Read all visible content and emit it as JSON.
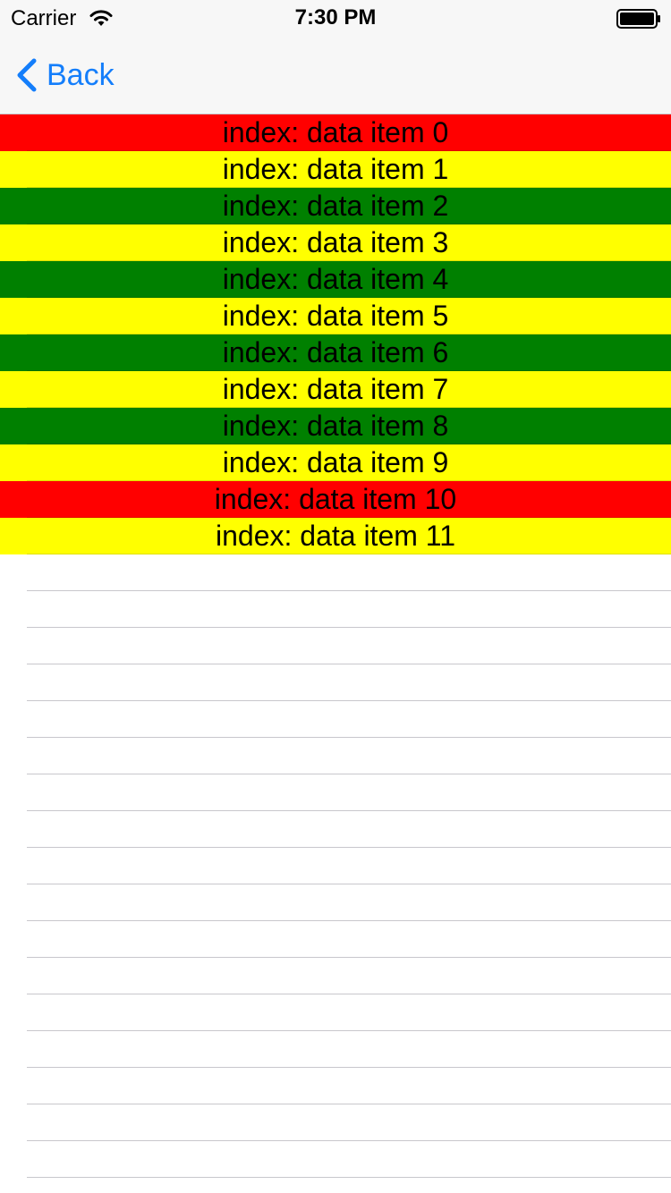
{
  "status_bar": {
    "carrier": "Carrier",
    "time": "7:30 PM",
    "wifi_icon": "wifi-icon",
    "battery_icon": "battery-icon"
  },
  "nav_bar": {
    "back_label": "Back",
    "back_icon": "chevron-left-icon"
  },
  "colors": {
    "accent": "#147efb",
    "red": "#ff0000",
    "yellow": "#ffff00",
    "green": "#008000",
    "nav_background": "#f7f7f7",
    "separator": "#c8c7cc"
  },
  "rows": [
    {
      "label": "index: data item 0",
      "color": "#ff0000"
    },
    {
      "label": "index: data item 1",
      "color": "#ffff00"
    },
    {
      "label": "index: data item 2",
      "color": "#008000"
    },
    {
      "label": "index: data item 3",
      "color": "#ffff00"
    },
    {
      "label": "index: data item 4",
      "color": "#008000"
    },
    {
      "label": "index: data item 5",
      "color": "#ffff00"
    },
    {
      "label": "index: data item 6",
      "color": "#008000"
    },
    {
      "label": "index: data item 7",
      "color": "#ffff00"
    },
    {
      "label": "index: data item 8",
      "color": "#008000"
    },
    {
      "label": "index: data item 9",
      "color": "#ffff00"
    },
    {
      "label": "index: data item 10",
      "color": "#ff0000"
    },
    {
      "label": "index: data item 11",
      "color": "#ffff00"
    }
  ]
}
